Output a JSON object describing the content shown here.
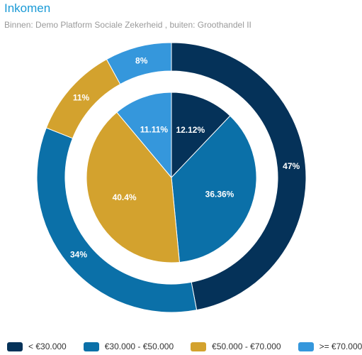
{
  "header": {
    "title": "Inkomen",
    "subtitle": "Binnen: Demo Platform Sociale Zekerheid , buiten: Groothandel II"
  },
  "chart_data": {
    "type": "pie",
    "categories": [
      "< €30.000",
      "€30.000 - €50.000",
      "€50.000 - €70.000",
      ">= €70.000"
    ],
    "colors": [
      "#053259",
      "#0b70a8",
      "#d3a22e",
      "#3597dc"
    ],
    "series": [
      {
        "ring": "inner",
        "values": [
          12.12,
          36.36,
          40.4,
          11.11
        ],
        "labels": [
          "12.12%",
          "36.36%",
          "40.4%",
          "11.11%"
        ]
      },
      {
        "ring": "outer",
        "values": [
          47,
          34,
          11,
          8
        ],
        "labels": [
          "47%",
          "34%",
          "11%",
          "8%"
        ]
      }
    ],
    "legend_position": "bottom"
  }
}
